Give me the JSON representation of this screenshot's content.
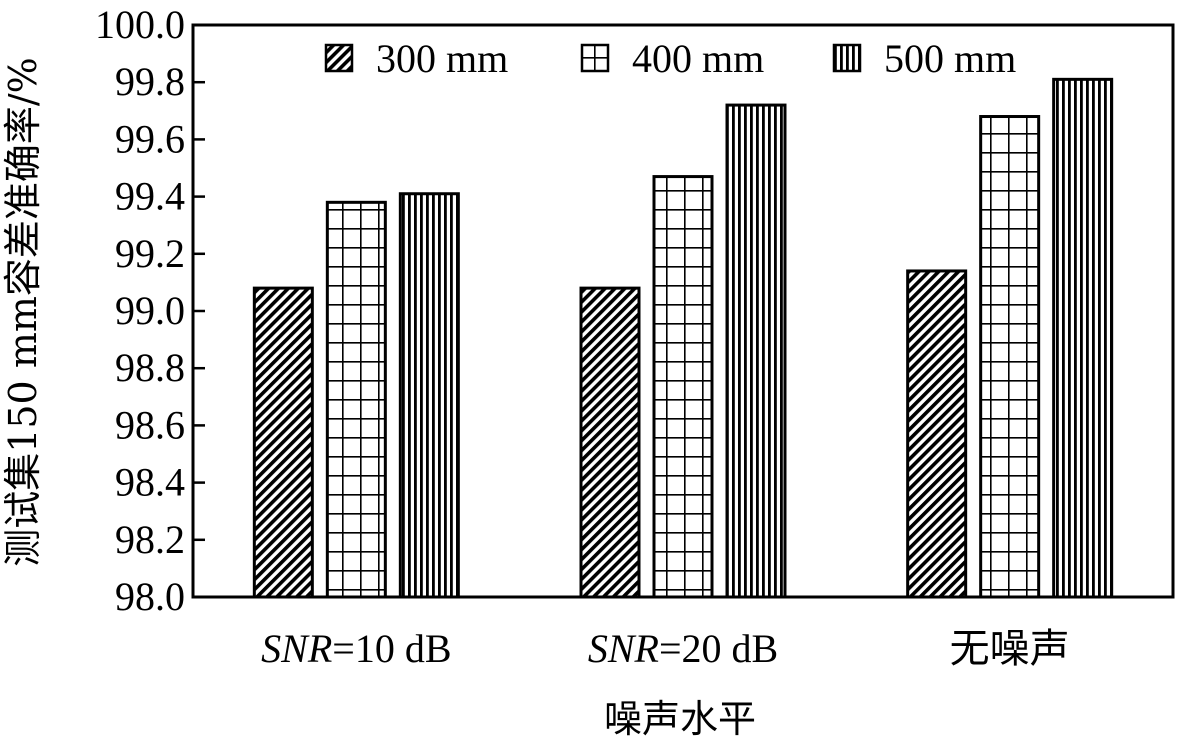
{
  "chart_data": {
    "type": "bar",
    "categories": [
      {
        "prefix": "SNR",
        "suffix": "=10 dB"
      },
      {
        "prefix": "SNR",
        "suffix": "=20 dB"
      },
      {
        "prefix": "",
        "suffix": "无噪声"
      }
    ],
    "series": [
      {
        "name": "300 mm",
        "pattern": "diagonal",
        "values": [
          99.08,
          99.08,
          99.14
        ]
      },
      {
        "name": "400 mm",
        "pattern": "grid",
        "values": [
          99.38,
          99.47,
          99.68
        ]
      },
      {
        "name": "500 mm",
        "pattern": "vertical",
        "values": [
          99.41,
          99.72,
          99.81
        ]
      }
    ],
    "xlabel": "噪声水平",
    "ylabel": "测试集150 mm容差准确率/%",
    "ylim": [
      98.0,
      100.0
    ],
    "yticks": [
      "98.0",
      "98.2",
      "98.4",
      "98.6",
      "98.8",
      "99.0",
      "99.2",
      "99.4",
      "99.6",
      "99.8",
      "100.0"
    ],
    "legend_position": "top",
    "grid": false
  }
}
